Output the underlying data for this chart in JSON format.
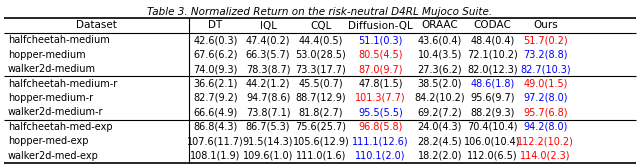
{
  "title": "Table 3. Normalized Return on the risk-neutral D4RL Mujoco Suite.",
  "columns": [
    "Dataset",
    "DT",
    "IQL",
    "CQL",
    "Diffusion-QL",
    "ORAAC",
    "CODAC",
    "Ours"
  ],
  "rows": [
    [
      "halfcheetah-medium",
      "42.6(0.3)",
      "47.4(0.2)",
      "44.4(0.5)",
      "51.1(0.3)",
      "43.6(0.4)",
      "48.4(0.4)",
      "51.7(0.2)"
    ],
    [
      "hopper-medium",
      "67.6(6.2)",
      "66.3(5.7)",
      "53.0(28.5)",
      "80.5(4.5)",
      "10.4(3.5)",
      "72.1(10.2)",
      "73.2(8.8)"
    ],
    [
      "walker2d-medium",
      "74.0(9.3)",
      "78.3(8.7)",
      "73.3(17.7)",
      "87.0(9.7)",
      "27.3(6.2)",
      "82.0(12.3)",
      "82.7(10.3)"
    ],
    [
      "halfcheetah-medium-r",
      "36.6(2.1)",
      "44.2(1.2)",
      "45.5(0.7)",
      "47.8(1.5)",
      "38.5(2.0)",
      "48.6(1.8)",
      "49.0(1.5)"
    ],
    [
      "hopper-medium-r",
      "82.7(9.2)",
      "94.7(8.6)",
      "88.7(12.9)",
      "101.3(7.7)",
      "84.2(10.2)",
      "95.6(9.7)",
      "97.2(8.0)"
    ],
    [
      "walker2d-medium-r",
      "66.6(4.9)",
      "73.8(7.1)",
      "81.8(2.7)",
      "95.5(5.5)",
      "69.2(7.2)",
      "88.2(9.3)",
      "95.7(6.8)"
    ],
    [
      "halfcheetah-med-exp",
      "86.8(4.3)",
      "86.7(5.3)",
      "75.6(25.7)",
      "96.8(5.8)",
      "24.0(4.3)",
      "70.4(10.4)",
      "94.2(8.0)"
    ],
    [
      "hopper-med-exp",
      "107.6(11.7)",
      "91.5(14.3)",
      "105.6(12.9)",
      "111.1(12.6)",
      "28.2(4.5)",
      "106.0(10.4)",
      "112.2(10.2)"
    ],
    [
      "walker2d-med-exp",
      "108.1(1.9)",
      "109.6(1.0)",
      "111.0(1.6)",
      "110.1(2.0)",
      "18.2(2.0)",
      "112.0(6.5)",
      "114.0(2.3)"
    ]
  ],
  "row_colors": [
    [
      "black",
      "black",
      "black",
      "blue",
      "black",
      "black",
      "red"
    ],
    [
      "black",
      "black",
      "black",
      "red",
      "black",
      "black",
      "blue"
    ],
    [
      "black",
      "black",
      "black",
      "red",
      "black",
      "black",
      "blue"
    ],
    [
      "black",
      "black",
      "black",
      "black",
      "black",
      "blue",
      "red"
    ],
    [
      "black",
      "black",
      "black",
      "red",
      "black",
      "black",
      "blue"
    ],
    [
      "black",
      "black",
      "black",
      "blue",
      "black",
      "black",
      "red"
    ],
    [
      "black",
      "black",
      "black",
      "red",
      "black",
      "black",
      "blue"
    ],
    [
      "black",
      "black",
      "black",
      "blue",
      "black",
      "black",
      "red"
    ],
    [
      "black",
      "black",
      "black",
      "blue",
      "black",
      "black",
      "red"
    ]
  ],
  "group_separators": [
    0,
    3,
    6,
    9
  ],
  "title_fontsize": 7.5,
  "data_fontsize": 7.0,
  "header_fontsize": 7.5
}
